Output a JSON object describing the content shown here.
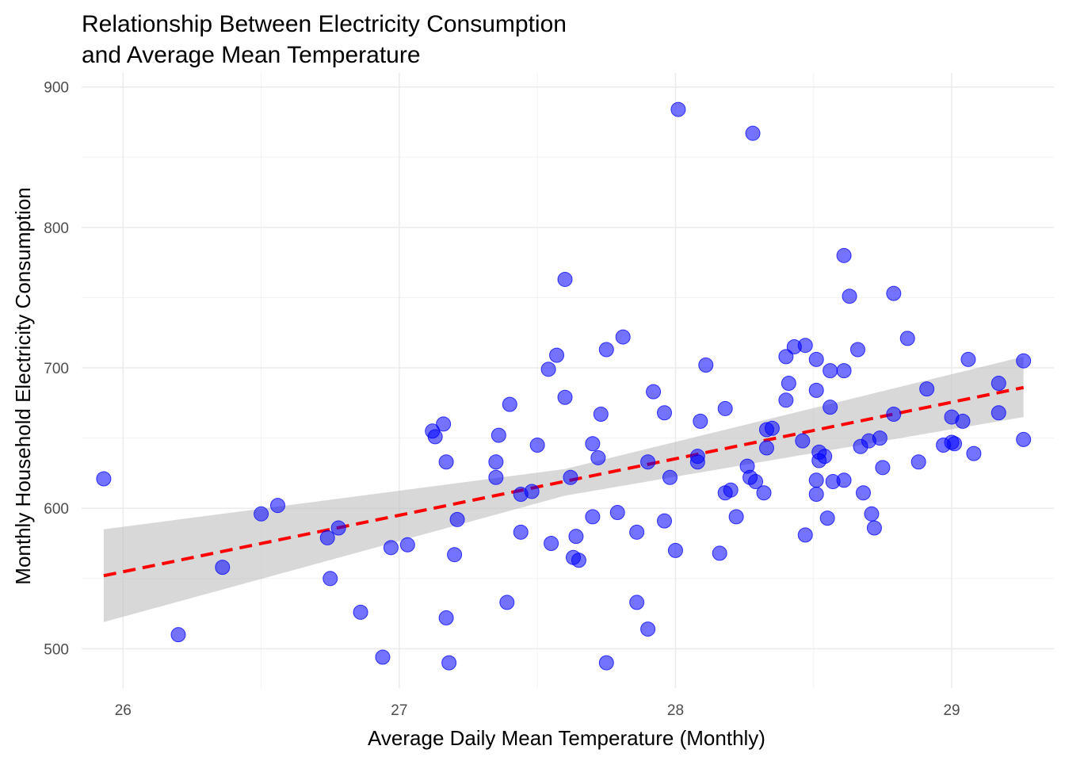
{
  "chart_data": {
    "type": "scatter",
    "title": [
      "Relationship Between Electricity Consumption",
      "and Average Mean Temperature"
    ],
    "xlabel": "Average Daily Mean Temperature (Monthly)",
    "ylabel": "Monthly Household Electricity Consumption",
    "xlim": [
      25.85,
      29.37
    ],
    "ylim": [
      472,
      910
    ],
    "x_ticks": [
      26,
      27,
      28,
      29
    ],
    "y_ticks": [
      500,
      600,
      700,
      800,
      900
    ],
    "grid": true,
    "point_color": "#0000ff",
    "trend_color": "#ff0000",
    "band_color": "#bebebe",
    "trend_line": {
      "x": [
        25.93,
        29.26
      ],
      "y": [
        552,
        686
      ]
    },
    "confidence_band": {
      "x": [
        25.93,
        27.6,
        29.26
      ],
      "lower": [
        519,
        609,
        665
      ],
      "upper": [
        585,
        628,
        708
      ]
    },
    "points": [
      {
        "x": 25.93,
        "y": 621
      },
      {
        "x": 26.2,
        "y": 510
      },
      {
        "x": 26.36,
        "y": 558
      },
      {
        "x": 26.5,
        "y": 596
      },
      {
        "x": 26.56,
        "y": 602
      },
      {
        "x": 26.74,
        "y": 579
      },
      {
        "x": 26.75,
        "y": 550
      },
      {
        "x": 26.78,
        "y": 586
      },
      {
        "x": 26.86,
        "y": 526
      },
      {
        "x": 26.94,
        "y": 494
      },
      {
        "x": 26.97,
        "y": 572
      },
      {
        "x": 27.03,
        "y": 574
      },
      {
        "x": 27.12,
        "y": 655
      },
      {
        "x": 27.13,
        "y": 651
      },
      {
        "x": 27.16,
        "y": 660
      },
      {
        "x": 27.17,
        "y": 633
      },
      {
        "x": 27.17,
        "y": 522
      },
      {
        "x": 27.18,
        "y": 490
      },
      {
        "x": 27.2,
        "y": 567
      },
      {
        "x": 27.21,
        "y": 592
      },
      {
        "x": 27.35,
        "y": 633
      },
      {
        "x": 27.35,
        "y": 622
      },
      {
        "x": 27.36,
        "y": 652
      },
      {
        "x": 27.4,
        "y": 674
      },
      {
        "x": 27.39,
        "y": 533
      },
      {
        "x": 27.44,
        "y": 583
      },
      {
        "x": 27.44,
        "y": 610
      },
      {
        "x": 27.48,
        "y": 612
      },
      {
        "x": 27.5,
        "y": 645
      },
      {
        "x": 27.54,
        "y": 699
      },
      {
        "x": 27.55,
        "y": 575
      },
      {
        "x": 27.57,
        "y": 709
      },
      {
        "x": 27.6,
        "y": 763
      },
      {
        "x": 27.6,
        "y": 679
      },
      {
        "x": 27.62,
        "y": 622
      },
      {
        "x": 27.63,
        "y": 565
      },
      {
        "x": 27.64,
        "y": 580
      },
      {
        "x": 27.65,
        "y": 563
      },
      {
        "x": 27.7,
        "y": 594
      },
      {
        "x": 27.7,
        "y": 646
      },
      {
        "x": 27.72,
        "y": 636
      },
      {
        "x": 27.73,
        "y": 667
      },
      {
        "x": 27.75,
        "y": 713
      },
      {
        "x": 27.75,
        "y": 490
      },
      {
        "x": 27.79,
        "y": 597
      },
      {
        "x": 27.81,
        "y": 722
      },
      {
        "x": 27.86,
        "y": 583
      },
      {
        "x": 27.86,
        "y": 533
      },
      {
        "x": 27.9,
        "y": 633
      },
      {
        "x": 27.9,
        "y": 514
      },
      {
        "x": 27.92,
        "y": 683
      },
      {
        "x": 27.96,
        "y": 668
      },
      {
        "x": 27.96,
        "y": 591
      },
      {
        "x": 27.98,
        "y": 622
      },
      {
        "x": 28.0,
        "y": 570
      },
      {
        "x": 28.01,
        "y": 884
      },
      {
        "x": 28.08,
        "y": 637
      },
      {
        "x": 28.08,
        "y": 633
      },
      {
        "x": 28.09,
        "y": 662
      },
      {
        "x": 28.11,
        "y": 702
      },
      {
        "x": 28.16,
        "y": 568
      },
      {
        "x": 28.18,
        "y": 671
      },
      {
        "x": 28.18,
        "y": 611
      },
      {
        "x": 28.2,
        "y": 613
      },
      {
        "x": 28.22,
        "y": 594
      },
      {
        "x": 28.26,
        "y": 630
      },
      {
        "x": 28.27,
        "y": 622
      },
      {
        "x": 28.28,
        "y": 867
      },
      {
        "x": 28.29,
        "y": 619
      },
      {
        "x": 28.32,
        "y": 611
      },
      {
        "x": 28.33,
        "y": 656
      },
      {
        "x": 28.33,
        "y": 643
      },
      {
        "x": 28.35,
        "y": 657
      },
      {
        "x": 28.4,
        "y": 708
      },
      {
        "x": 28.4,
        "y": 677
      },
      {
        "x": 28.41,
        "y": 689
      },
      {
        "x": 28.43,
        "y": 715
      },
      {
        "x": 28.46,
        "y": 648
      },
      {
        "x": 28.47,
        "y": 716
      },
      {
        "x": 28.47,
        "y": 581
      },
      {
        "x": 28.51,
        "y": 706
      },
      {
        "x": 28.51,
        "y": 684
      },
      {
        "x": 28.51,
        "y": 620
      },
      {
        "x": 28.51,
        "y": 610
      },
      {
        "x": 28.52,
        "y": 640
      },
      {
        "x": 28.52,
        "y": 634
      },
      {
        "x": 28.54,
        "y": 637
      },
      {
        "x": 28.55,
        "y": 593
      },
      {
        "x": 28.56,
        "y": 698
      },
      {
        "x": 28.56,
        "y": 672
      },
      {
        "x": 28.57,
        "y": 619
      },
      {
        "x": 28.61,
        "y": 780
      },
      {
        "x": 28.61,
        "y": 698
      },
      {
        "x": 28.61,
        "y": 620
      },
      {
        "x": 28.63,
        "y": 751
      },
      {
        "x": 28.66,
        "y": 713
      },
      {
        "x": 28.67,
        "y": 644
      },
      {
        "x": 28.68,
        "y": 611
      },
      {
        "x": 28.7,
        "y": 648
      },
      {
        "x": 28.71,
        "y": 596
      },
      {
        "x": 28.72,
        "y": 586
      },
      {
        "x": 28.74,
        "y": 650
      },
      {
        "x": 28.75,
        "y": 629
      },
      {
        "x": 28.79,
        "y": 753
      },
      {
        "x": 28.79,
        "y": 667
      },
      {
        "x": 28.84,
        "y": 721
      },
      {
        "x": 28.88,
        "y": 633
      },
      {
        "x": 28.91,
        "y": 685
      },
      {
        "x": 28.97,
        "y": 645
      },
      {
        "x": 29.0,
        "y": 665
      },
      {
        "x": 29.0,
        "y": 647
      },
      {
        "x": 29.01,
        "y": 646
      },
      {
        "x": 29.04,
        "y": 662
      },
      {
        "x": 29.06,
        "y": 706
      },
      {
        "x": 29.08,
        "y": 639
      },
      {
        "x": 29.17,
        "y": 689
      },
      {
        "x": 29.17,
        "y": 668
      },
      {
        "x": 29.26,
        "y": 705
      },
      {
        "x": 29.26,
        "y": 649
      }
    ]
  }
}
